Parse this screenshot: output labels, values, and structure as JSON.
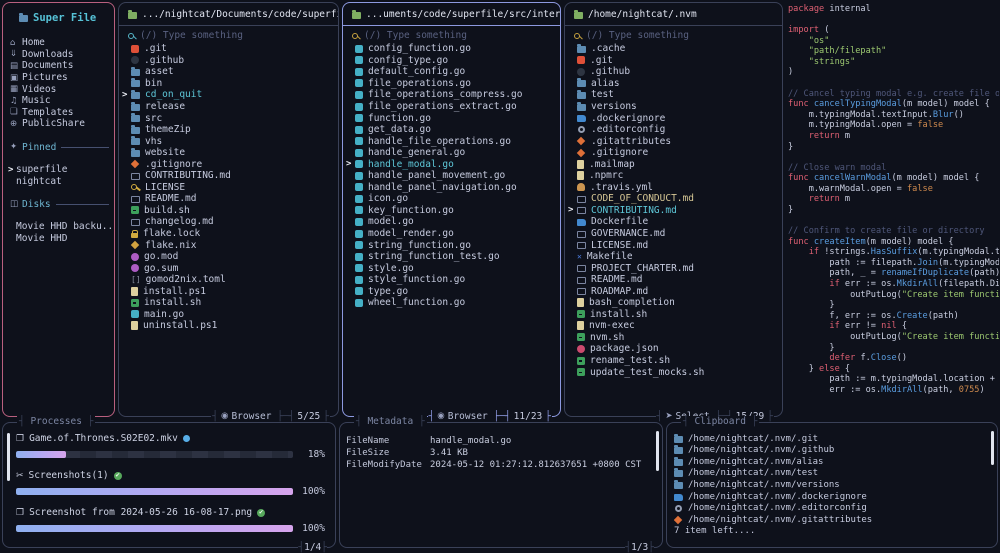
{
  "sidebar": {
    "title": "Super File",
    "items": [
      {
        "label": "Home",
        "icon": "home"
      },
      {
        "label": "Downloads",
        "icon": "downloads"
      },
      {
        "label": "Documents",
        "icon": "documents"
      },
      {
        "label": "Pictures",
        "icon": "pictures"
      },
      {
        "label": "Videos",
        "icon": "videos"
      },
      {
        "label": "Music",
        "icon": "music"
      },
      {
        "label": "Templates",
        "icon": "templates"
      },
      {
        "label": "PublicShare",
        "icon": "publicshare"
      }
    ],
    "sections": [
      {
        "label": "Pinned",
        "icon": "pin",
        "items": [
          {
            "label": "superfile",
            "cursor": true
          },
          {
            "label": "nightcat"
          }
        ]
      },
      {
        "label": "Disks",
        "icon": "disk",
        "items": [
          {
            "label": "Movie HHD backu..."
          },
          {
            "label": "Movie HHD"
          }
        ]
      }
    ]
  },
  "search_placeholder": "(/) Type something",
  "panels": [
    {
      "path": ".../nightcat/Documents/code/superfile",
      "focused": false,
      "search_icon_color": "#56b7c9",
      "mode": "Browser",
      "mode_icon": "browser",
      "count": "5/25",
      "files": [
        [
          ".git",
          "git"
        ],
        [
          ".github",
          "github"
        ],
        [
          "asset",
          "folder"
        ],
        [
          "bin",
          "folder"
        ],
        [
          "cd_on_quit",
          "folder",
          "c"
        ],
        [
          "release",
          "folder"
        ],
        [
          "src",
          "folder"
        ],
        [
          "themeZip",
          "folder"
        ],
        [
          "vhs",
          "folder"
        ],
        [
          "website",
          "folder"
        ],
        [
          ".gitignore",
          "diamond"
        ],
        [
          "CONTRIBUTING.md",
          "md"
        ],
        [
          "LICENSE",
          "key"
        ],
        [
          "README.md",
          "md"
        ],
        [
          "build.sh",
          "sh"
        ],
        [
          "changelog.md",
          "md"
        ],
        [
          "flake.lock",
          "lock"
        ],
        [
          "flake.nix",
          "nix"
        ],
        [
          "go.mod",
          "gomod"
        ],
        [
          "go.sum",
          "gomod"
        ],
        [
          "gomod2nix.toml",
          "brackets"
        ],
        [
          "install.ps1",
          "filec"
        ],
        [
          "install.sh",
          "sh"
        ],
        [
          "main.go",
          "go"
        ],
        [
          "uninstall.ps1",
          "filec"
        ]
      ]
    },
    {
      "path": "...uments/code/superfile/src/internal",
      "focused": true,
      "search_icon_color": "#c7a23f",
      "mode": "Browser",
      "mode_icon": "browser",
      "count": "11/23",
      "files": [
        [
          "config_function.go",
          "go"
        ],
        [
          "config_type.go",
          "go"
        ],
        [
          "default_config.go",
          "go"
        ],
        [
          "file_operations.go",
          "go"
        ],
        [
          "file_operations_compress.go",
          "go"
        ],
        [
          "file_operations_extract.go",
          "go"
        ],
        [
          "function.go",
          "go"
        ],
        [
          "get_data.go",
          "go"
        ],
        [
          "handle_file_operations.go",
          "go"
        ],
        [
          "handle_general.go",
          "go"
        ],
        [
          "handle_modal.go",
          "go",
          "c"
        ],
        [
          "handle_panel_movement.go",
          "go"
        ],
        [
          "handle_panel_navigation.go",
          "go"
        ],
        [
          "icon.go",
          "go"
        ],
        [
          "key_function.go",
          "go"
        ],
        [
          "model.go",
          "go"
        ],
        [
          "model_render.go",
          "go"
        ],
        [
          "string_function.go",
          "go"
        ],
        [
          "string_function_test.go",
          "go"
        ],
        [
          "style.go",
          "go"
        ],
        [
          "style_function.go",
          "go"
        ],
        [
          "type.go",
          "go"
        ],
        [
          "wheel_function.go",
          "go"
        ]
      ]
    },
    {
      "path": "/home/nightcat/.nvm",
      "focused": false,
      "search_icon_color": "#c7a23f",
      "mode": "Select",
      "mode_icon": "select",
      "count": "15/29",
      "files": [
        [
          ".cache",
          "folder"
        ],
        [
          ".git",
          "git"
        ],
        [
          ".github",
          "github"
        ],
        [
          "alias",
          "folder"
        ],
        [
          "test",
          "folder"
        ],
        [
          "versions",
          "folder"
        ],
        [
          ".dockerignore",
          "docker"
        ],
        [
          ".editorconfig",
          "gear"
        ],
        [
          ".gitattributes",
          "diamond"
        ],
        [
          ".gitignore",
          "diamond"
        ],
        [
          ".mailmap",
          "filec"
        ],
        [
          ".npmrc",
          "filec"
        ],
        [
          ".travis.yml",
          "travis"
        ],
        [
          "CODE_OF_CONDUCT.md",
          "md",
          "s"
        ],
        [
          "CONTRIBUTING.md",
          "md",
          "c"
        ],
        [
          "Dockerfile",
          "docker"
        ],
        [
          "GOVERNANCE.md",
          "md"
        ],
        [
          "LICENSE.md",
          "md"
        ],
        [
          "Makefile",
          "make"
        ],
        [
          "PROJECT_CHARTER.md",
          "md"
        ],
        [
          "README.md",
          "md"
        ],
        [
          "ROADMAP.md",
          "md"
        ],
        [
          "bash_completion",
          "filec"
        ],
        [
          "install.sh",
          "sh"
        ],
        [
          "nvm-exec",
          "filec"
        ],
        [
          "nvm.sh",
          "sh"
        ],
        [
          "package.json",
          "npm"
        ],
        [
          "rename_test.sh",
          "sh"
        ],
        [
          "update_test_mocks.sh",
          "sh"
        ]
      ]
    }
  ],
  "preview": {
    "lines": [
      [
        [
          "k",
          "package"
        ],
        [
          "d",
          " internal"
        ]
      ],
      [],
      [
        [
          "k",
          "import"
        ],
        [
          "d",
          " ("
        ]
      ],
      [
        [
          "s",
          "    \"os\""
        ]
      ],
      [
        [
          "s",
          "    \"path/filepath\""
        ]
      ],
      [
        [
          "s",
          "    \"strings\""
        ]
      ],
      [
        [
          "d",
          ")"
        ]
      ],
      [],
      [
        [
          "c",
          "// Cancel typing modal e.g. create file o"
        ]
      ],
      [
        [
          "k",
          "func"
        ],
        [
          "f",
          " cancelTypingModal"
        ],
        [
          "d",
          "(m model) model {"
        ]
      ],
      [
        [
          "d",
          "    m.typingModal.textInput."
        ],
        [
          "f",
          "Blur"
        ],
        [
          "d",
          "()"
        ]
      ],
      [
        [
          "d",
          "    m.typingModal.open = "
        ],
        [
          "n",
          "false"
        ]
      ],
      [
        [
          "k",
          "    return"
        ],
        [
          "d",
          " m"
        ]
      ],
      [
        [
          "d",
          "}"
        ]
      ],
      [],
      [
        [
          "c",
          "// Close warn modal"
        ]
      ],
      [
        [
          "k",
          "func"
        ],
        [
          "f",
          " cancelWarnModal"
        ],
        [
          "d",
          "(m model) model {"
        ]
      ],
      [
        [
          "d",
          "    m.warnModal.open = "
        ],
        [
          "n",
          "false"
        ]
      ],
      [
        [
          "k",
          "    return"
        ],
        [
          "d",
          " m"
        ]
      ],
      [
        [
          "d",
          "}"
        ]
      ],
      [],
      [
        [
          "c",
          "// Confirm to create file or directory"
        ]
      ],
      [
        [
          "k",
          "func"
        ],
        [
          "f",
          " createItem"
        ],
        [
          "d",
          "(m model) model {"
        ]
      ],
      [
        [
          "k",
          "    if"
        ],
        [
          "d",
          " !strings."
        ],
        [
          "f",
          "HasSuffix"
        ],
        [
          "d",
          "(m.typingModal.t"
        ]
      ],
      [
        [
          "d",
          "        path := filepath."
        ],
        [
          "f",
          "Join"
        ],
        [
          "d",
          "(m.typingMod"
        ]
      ],
      [
        [
          "d",
          "        path, _ = "
        ],
        [
          "f",
          "renameIfDuplicate"
        ],
        [
          "d",
          "(path)"
        ]
      ],
      [
        [
          "k",
          "        if"
        ],
        [
          "d",
          " err := os."
        ],
        [
          "f",
          "MkdirAll"
        ],
        [
          "d",
          "(filepath.Di"
        ]
      ],
      [
        [
          "d",
          "            outPutLog("
        ],
        [
          "s",
          "\"Create item functi"
        ]
      ],
      [
        [
          "d",
          "        }"
        ]
      ],
      [
        [
          "d",
          "        f, err := os."
        ],
        [
          "f",
          "Create"
        ],
        [
          "d",
          "(path)"
        ]
      ],
      [
        [
          "k",
          "        if"
        ],
        [
          "d",
          " err != "
        ],
        [
          "k",
          "nil"
        ],
        [
          "d",
          " {"
        ]
      ],
      [
        [
          "d",
          "            outPutLog("
        ],
        [
          "s",
          "\"Create item functi"
        ]
      ],
      [
        [
          "d",
          "        }"
        ]
      ],
      [
        [
          "k",
          "        defer"
        ],
        [
          "d",
          " f."
        ],
        [
          "f",
          "Close"
        ],
        [
          "d",
          "()"
        ]
      ],
      [
        [
          "d",
          "    } "
        ],
        [
          "k",
          "else"
        ],
        [
          "d",
          " {"
        ]
      ],
      [
        [
          "d",
          "        path := m.typingModal.location + "
        ]
      ],
      [
        [
          "d",
          "        err := os."
        ],
        [
          "f",
          "MkdirAll"
        ],
        [
          "d",
          "(path, "
        ],
        [
          "n",
          "0755"
        ],
        [
          "d",
          ")"
        ]
      ]
    ]
  },
  "processes": {
    "title": "Processes",
    "counter": "1/4",
    "items": [
      {
        "name": "Game.of.Thrones.S02E02.mkv",
        "icon": "copy",
        "status": "progress",
        "percent": 18,
        "percent_label": "18%"
      },
      {
        "name": "Screenshots(1)",
        "icon": "scissors",
        "status": "done",
        "percent": 100,
        "percent_label": "100%"
      },
      {
        "name": "Screenshot from 2024-05-26 16-08-17.png",
        "icon": "copy",
        "status": "done",
        "percent": 100,
        "percent_label": "100%"
      }
    ]
  },
  "metadata": {
    "title": "Metadata",
    "counter": "1/3",
    "rows": [
      [
        "FileName",
        "handle_modal.go"
      ],
      [
        "FileSize",
        "3.41 KB"
      ],
      [
        "FileModifyDate",
        "2024-05-12 01:27:12.812637651 +0800 CST"
      ]
    ]
  },
  "clipboard": {
    "title": "Clipboard",
    "items": [
      {
        "path": "/home/nightcat/.nvm/.git",
        "icon": "folder"
      },
      {
        "path": "/home/nightcat/.nvm/.github",
        "icon": "folder"
      },
      {
        "path": "/home/nightcat/.nvm/alias",
        "icon": "folder"
      },
      {
        "path": "/home/nightcat/.nvm/test",
        "icon": "folder"
      },
      {
        "path": "/home/nightcat/.nvm/versions",
        "icon": "folder"
      },
      {
        "path": "/home/nightcat/.nvm/.dockerignore",
        "icon": "docker"
      },
      {
        "path": "/home/nightcat/.nvm/.editorconfig",
        "icon": "gear"
      },
      {
        "path": "/home/nightcat/.nvm/.gitattributes",
        "icon": "diamond"
      }
    ],
    "more": "7 item left...."
  },
  "colors": {
    "accent_cyan": "#56c2d6",
    "border_active": "#8d99e0",
    "border_pink": "#b9607f",
    "progress_gradient_start": "#8fb0f0",
    "progress_gradient_end": "#d6a4ec",
    "status_done": "#57a85c",
    "status_progress": "#58aee8"
  }
}
